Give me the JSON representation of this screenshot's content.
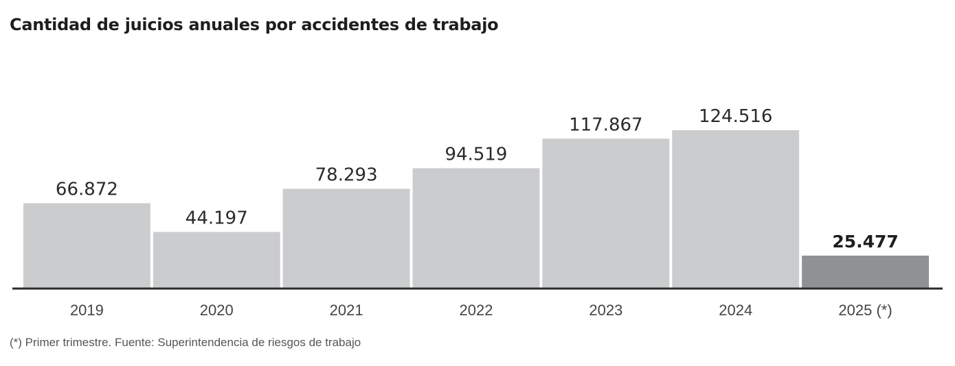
{
  "chart_data": {
    "type": "bar",
    "title": "Cantidad de juicios anuales por accidentes de trabajo",
    "categories": [
      "2019",
      "2020",
      "2021",
      "2022",
      "2023",
      "2024",
      "2025 (*)"
    ],
    "values": [
      66872,
      44197,
      78293,
      94519,
      117867,
      124516,
      25477
    ],
    "value_labels": [
      "66.872",
      "44.197",
      "78.293",
      "94.519",
      "117.867",
      "124.516",
      "25.477"
    ],
    "highlight_index": 6,
    "ylim": [
      0,
      130000
    ],
    "grid": false,
    "colors": {
      "bar": "#cbcccd",
      "bar_highlight": "#8f9193",
      "axis": "#2b2b2b",
      "label": "#2a2a2a",
      "tick": "#444444"
    }
  },
  "footnote": "(*) Primer trimestre. Fuente: Superintendencia de riesgos de trabajo"
}
